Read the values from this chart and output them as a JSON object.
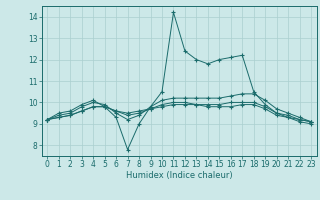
{
  "title": "",
  "xlabel": "Humidex (Indice chaleur)",
  "ylabel": "",
  "bg_color": "#cce8e8",
  "grid_color": "#aacfcf",
  "line_color": "#1a6b6b",
  "xlim": [
    -0.5,
    23.5
  ],
  "ylim": [
    7.5,
    14.5
  ],
  "xticks": [
    0,
    1,
    2,
    3,
    4,
    5,
    6,
    7,
    8,
    9,
    10,
    11,
    12,
    13,
    14,
    15,
    16,
    17,
    18,
    19,
    20,
    21,
    22,
    23
  ],
  "yticks": [
    8,
    9,
    10,
    11,
    12,
    13,
    14
  ],
  "series": {
    "line1": {
      "x": [
        0,
        1,
        2,
        3,
        4,
        5,
        6,
        7,
        8,
        9,
        10,
        11,
        12,
        13,
        14,
        15,
        16,
        17,
        18,
        19,
        20,
        21,
        22,
        23
      ],
      "y": [
        9.2,
        9.5,
        9.6,
        9.9,
        10.1,
        9.8,
        9.3,
        7.8,
        9.0,
        9.8,
        10.5,
        14.2,
        12.4,
        12.0,
        11.8,
        12.0,
        12.1,
        12.2,
        10.5,
        9.9,
        9.5,
        9.3,
        9.2,
        9.1
      ]
    },
    "line2": {
      "x": [
        0,
        1,
        2,
        3,
        4,
        5,
        6,
        7,
        8,
        9,
        10,
        11,
        12,
        13,
        14,
        15,
        16,
        17,
        18,
        19,
        20,
        21,
        22,
        23
      ],
      "y": [
        9.2,
        9.4,
        9.5,
        9.8,
        10.0,
        9.9,
        9.5,
        9.2,
        9.4,
        9.8,
        10.1,
        10.2,
        10.2,
        10.2,
        10.2,
        10.2,
        10.3,
        10.4,
        10.4,
        10.1,
        9.7,
        9.5,
        9.3,
        9.1
      ]
    },
    "line3": {
      "x": [
        0,
        1,
        2,
        3,
        4,
        5,
        6,
        7,
        8,
        9,
        10,
        11,
        12,
        13,
        14,
        15,
        16,
        17,
        18,
        19,
        20,
        21,
        22,
        23
      ],
      "y": [
        9.2,
        9.3,
        9.4,
        9.6,
        9.8,
        9.8,
        9.6,
        9.4,
        9.5,
        9.7,
        9.9,
        10.0,
        10.0,
        9.9,
        9.9,
        9.9,
        10.0,
        10.0,
        10.0,
        9.8,
        9.5,
        9.4,
        9.2,
        9.1
      ]
    },
    "line4": {
      "x": [
        0,
        1,
        2,
        3,
        4,
        5,
        6,
        7,
        8,
        9,
        10,
        11,
        12,
        13,
        14,
        15,
        16,
        17,
        18,
        19,
        20,
        21,
        22,
        23
      ],
      "y": [
        9.2,
        9.3,
        9.4,
        9.6,
        9.8,
        9.8,
        9.6,
        9.5,
        9.6,
        9.7,
        9.8,
        9.9,
        9.9,
        9.9,
        9.8,
        9.8,
        9.8,
        9.9,
        9.9,
        9.7,
        9.4,
        9.3,
        9.1,
        9.0
      ]
    }
  }
}
